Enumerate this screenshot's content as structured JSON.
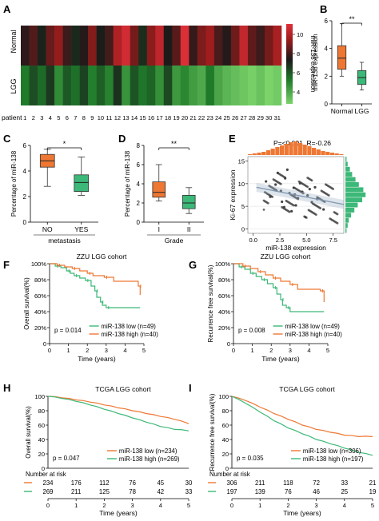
{
  "colors": {
    "normal": "#ee7733",
    "lgg": "#3cb878",
    "low": "#3cb878",
    "high": "#ee7733",
    "scatter": "#444444",
    "fit": "#9fb3c8",
    "hist_top": "#ee7733",
    "hist_right": "#3cb878"
  },
  "panelA": {
    "letter": "A",
    "row_labels": [
      "Normal",
      "LGG"
    ],
    "patient_label": "patient",
    "patients": [
      "1",
      "2",
      "3",
      "4",
      "5",
      "6",
      "7",
      "8",
      "9",
      "10",
      "11",
      "12",
      "13",
      "14",
      "15",
      "16",
      "17",
      "18",
      "19",
      "20",
      "21",
      "22",
      "23",
      "24",
      "25",
      "26",
      "27",
      "28",
      "29",
      "30",
      "31"
    ],
    "colorbar_ticks": [
      "10",
      "8",
      "6",
      "4"
    ],
    "colorbar_label": "miR-138 expression"
  },
  "panelB": {
    "letter": "B",
    "ylabel": "miR-138 expression",
    "yticks": [
      "0",
      "2",
      "4",
      "6"
    ],
    "categories": [
      "Normal",
      "LGG"
    ],
    "sig": "**"
  },
  "panelC": {
    "letter": "C",
    "ylabel": "Percentage of  miR-138",
    "yticks": [
      "0",
      "2",
      "4",
      "6"
    ],
    "categories": [
      "NO",
      "YES"
    ],
    "xlabel": "metastasis",
    "sig": "*"
  },
  "panelD": {
    "letter": "D",
    "ylabel": "Percentage of  miR-138",
    "yticks": [
      "0",
      "2",
      "4",
      "6",
      "8"
    ],
    "categories": [
      "I",
      "II"
    ],
    "xlabel": "Grade",
    "sig": "**"
  },
  "panelE": {
    "letter": "E",
    "stat": "P=<0.001, R=-0.26",
    "xlabel": "miR-138 expression",
    "ylabel": "Ki-67 expression",
    "xticks": [
      "0.0",
      "2.5",
      "5.0",
      "7.5"
    ],
    "yticks": [
      "0",
      "5",
      "10",
      "15"
    ]
  },
  "panelF": {
    "letter": "F",
    "title": "ZZU LGG cohort",
    "ylabel": "Overall survival(%)",
    "xlabel": "Time (years)",
    "yticks": [
      "0",
      "20%",
      "40%",
      "60%",
      "80%",
      "100%"
    ],
    "xticks": [
      "0",
      "1",
      "2",
      "3",
      "4",
      "5"
    ],
    "pvalue": "p = 0.014",
    "legend": [
      "miR-138 low (n=49)",
      "miR-138 high (n=40)"
    ]
  },
  "panelG": {
    "letter": "G",
    "title": "ZZU LGG cohort",
    "ylabel": "Recurrence free survival(%)",
    "xlabel": "Time (years)",
    "yticks": [
      "0",
      "20%",
      "40%",
      "60%",
      "80%",
      "100%"
    ],
    "xticks": [
      "0",
      "1",
      "2",
      "3",
      "4",
      "5"
    ],
    "pvalue": "p = 0.008",
    "legend": [
      "miR-138 low (n=49)",
      "miR-138 high (n=40)"
    ]
  },
  "panelH": {
    "letter": "H",
    "title": "TCGA LGG cohort",
    "ylabel": "Overall survival(%)",
    "xlabel": "Time (years)",
    "yticks": [
      "0",
      "20",
      "40",
      "60",
      "80",
      "100"
    ],
    "xticks": [
      "0",
      "1",
      "2",
      "3",
      "4",
      "5"
    ],
    "pvalue": "p = 0.047",
    "legend": [
      "miR-138 low (n=234)",
      "miR-138 high (n=269)"
    ],
    "risk_label": "Number at risk",
    "risk_rows": [
      [
        "234",
        "176",
        "112",
        "76",
        "45",
        "30"
      ],
      [
        "269",
        "211",
        "125",
        "78",
        "42",
        "33"
      ]
    ]
  },
  "panelI": {
    "letter": "I",
    "title": "TCGA LGG cohort",
    "ylabel": "Recurrence free survival(%)",
    "xlabel": "Time (years)",
    "yticks": [
      "0",
      "20",
      "40",
      "60",
      "80",
      "100"
    ],
    "xticks": [
      "0",
      "1",
      "2",
      "3",
      "4",
      "5"
    ],
    "pvalue": "p = 0.035",
    "legend": [
      "miR-138 low (n=306)",
      "miR-138 high (n=197)"
    ],
    "risk_label": "Number at risk",
    "risk_rows": [
      [
        "306",
        "211",
        "118",
        "72",
        "33",
        "21"
      ],
      [
        "197",
        "139",
        "76",
        "46",
        "25",
        "19"
      ]
    ]
  },
  "chart_data": [
    {
      "type": "heatmap",
      "panel": "A",
      "rows": [
        "Normal",
        "LGG"
      ],
      "columns": [
        "1",
        "2",
        "3",
        "4",
        "5",
        "6",
        "7",
        "8",
        "9",
        "10",
        "11",
        "12",
        "13",
        "14",
        "15",
        "16",
        "17",
        "18",
        "19",
        "20",
        "21",
        "22",
        "23",
        "24",
        "25",
        "26",
        "27",
        "28",
        "29",
        "30",
        "31"
      ],
      "values": [
        [
          7.6,
          8.1,
          7.2,
          8.4,
          9.0,
          7.8,
          7.1,
          7.5,
          8.8,
          7.3,
          7.9,
          9.5,
          10.2,
          8.6,
          7.0,
          8.9,
          9.8,
          7.4,
          8.2,
          10.4,
          7.7,
          8.7,
          9.2,
          8.0,
          7.5,
          8.5,
          9.9,
          8.3,
          7.8,
          8.6,
          9.4
        ],
        [
          5.6,
          6.4,
          5.9,
          6.8,
          5.2,
          6.2,
          5.8,
          6.6,
          5.5,
          6.1,
          5.4,
          6.9,
          5.0,
          6.3,
          5.7,
          6.0,
          5.1,
          6.5,
          4.9,
          5.3,
          4.8,
          4.5,
          5.6,
          4.6,
          4.2,
          4.0,
          3.8,
          3.6,
          3.9,
          3.5,
          3.7
        ]
      ],
      "colorbar_range": [
        3.5,
        10.5
      ]
    },
    {
      "type": "box",
      "panel": "B",
      "ylabel": "miR-138 expression",
      "ylim": [
        0,
        6
      ],
      "categories": [
        "Normal",
        "LGG"
      ],
      "series": [
        {
          "min": 2.0,
          "q1": 2.5,
          "median": 3.3,
          "q3": 4.2,
          "max": 5.8
        },
        {
          "min": 1.0,
          "q1": 1.4,
          "median": 1.9,
          "q3": 2.4,
          "max": 3.0
        }
      ]
    },
    {
      "type": "box",
      "panel": "C",
      "ylabel": "Percentage of  miR-138",
      "xlabel": "metastasis",
      "ylim": [
        0,
        6
      ],
      "categories": [
        "NO",
        "YES"
      ],
      "series": [
        {
          "min": 2.8,
          "q1": 4.3,
          "median": 4.8,
          "q3": 5.3,
          "max": 5.7
        },
        {
          "min": 2.1,
          "q1": 2.4,
          "median": 3.1,
          "q3": 3.7,
          "max": 5.1
        }
      ]
    },
    {
      "type": "box",
      "panel": "D",
      "ylabel": "Percentage of  miR-138",
      "xlabel": "Grade",
      "ylim": [
        0,
        8
      ],
      "categories": [
        "I",
        "II"
      ],
      "series": [
        {
          "min": 2.2,
          "q1": 2.6,
          "median": 3.1,
          "q3": 4.2,
          "max": 6.0
        },
        {
          "min": 0.9,
          "q1": 1.4,
          "median": 2.0,
          "q3": 2.8,
          "max": 3.6
        }
      ]
    },
    {
      "type": "scatter",
      "panel": "E",
      "xlabel": "miR-138 expression",
      "ylabel": "Ki-67 expression",
      "xlim": [
        -0.5,
        8.5
      ],
      "ylim": [
        -1,
        16
      ],
      "points": [
        [
          1.2,
          10.5
        ],
        [
          2.1,
          9.8
        ],
        [
          2.6,
          8.4
        ],
        [
          3.0,
          11.2
        ],
        [
          3.4,
          7.9
        ],
        [
          3.8,
          9.1
        ],
        [
          4.2,
          6.8
        ],
        [
          4.6,
          8.2
        ],
        [
          5.1,
          7.4
        ],
        [
          5.5,
          5.9
        ],
        [
          6.0,
          6.6
        ],
        [
          2.9,
          4.8
        ],
        [
          3.6,
          3.9
        ],
        [
          4.0,
          5.2
        ],
        [
          1.6,
          7.1
        ],
        [
          2.3,
          12.4
        ],
        [
          4.4,
          10.1
        ],
        [
          5.8,
          9.2
        ],
        [
          6.6,
          4.3
        ],
        [
          3.2,
          13.1
        ],
        [
          4.9,
          2.6
        ],
        [
          2.7,
          6.0
        ],
        [
          3.9,
          7.6
        ],
        [
          5.3,
          8.8
        ]
      ],
      "fit": {
        "x": [
          0.3,
          8.5
        ],
        "y": [
          9.2,
          5.4
        ]
      }
    },
    {
      "type": "line",
      "panel": "F",
      "xlabel": "Time (years)",
      "ylabel": "Overall survival(%)",
      "xlim": [
        0,
        5
      ],
      "ylim": [
        0,
        100
      ],
      "series": [
        {
          "name": "miR-138 low (n=49)",
          "x": [
            0,
            0.3,
            0.6,
            0.9,
            1.1,
            1.3,
            1.6,
            1.9,
            2.2,
            2.4,
            2.5,
            2.7,
            2.8,
            3.0,
            4.8
          ],
          "y": [
            100,
            97,
            95,
            91,
            88,
            85,
            82,
            79,
            72,
            66,
            58,
            52,
            48,
            45,
            45
          ]
        },
        {
          "name": "miR-138 high (n=40)",
          "x": [
            0,
            0.4,
            0.8,
            1.2,
            1.6,
            2.0,
            2.3,
            2.9,
            3.4,
            4.7,
            4.8
          ],
          "y": [
            100,
            98,
            96,
            94,
            91,
            88,
            85,
            83,
            78,
            72,
            61
          ]
        }
      ]
    },
    {
      "type": "line",
      "panel": "G",
      "xlabel": "Time (years)",
      "ylabel": "Recurrence free survival(%)",
      "xlim": [
        0,
        5
      ],
      "ylim": [
        0,
        100
      ],
      "series": [
        {
          "name": "miR-138 low (n=49)",
          "x": [
            0,
            0.3,
            0.6,
            0.9,
            1.2,
            1.5,
            1.8,
            2.1,
            2.3,
            2.5,
            2.6,
            2.8,
            3.0,
            4.8
          ],
          "y": [
            100,
            96,
            93,
            88,
            84,
            80,
            75,
            70,
            62,
            55,
            48,
            45,
            40,
            40
          ]
        },
        {
          "name": "miR-138 high (n=40)",
          "x": [
            0,
            0.5,
            0.9,
            1.3,
            1.7,
            2.1,
            2.5,
            3.0,
            3.4,
            4.6,
            4.8
          ],
          "y": [
            100,
            97,
            94,
            90,
            86,
            82,
            78,
            74,
            68,
            66,
            52
          ]
        }
      ]
    },
    {
      "type": "line",
      "panel": "H",
      "xlabel": "Time (years)",
      "ylabel": "Overall survival(%)",
      "xlim": [
        0,
        5
      ],
      "ylim": [
        0,
        100
      ],
      "series": [
        {
          "name": "miR-138 low (n=234)",
          "x": [
            0,
            0.5,
            1,
            1.5,
            2,
            2.5,
            3,
            3.5,
            4,
            4.5,
            5
          ],
          "y": [
            100,
            98,
            95,
            92,
            88,
            84,
            80,
            76,
            72,
            68,
            62
          ]
        },
        {
          "name": "miR-138 high (n=269)",
          "x": [
            0,
            0.5,
            1,
            1.5,
            2,
            2.5,
            3,
            3.5,
            4,
            4.5,
            5
          ],
          "y": [
            100,
            97,
            93,
            88,
            82,
            76,
            70,
            64,
            58,
            54,
            52
          ]
        }
      ]
    },
    {
      "type": "line",
      "panel": "I",
      "xlabel": "Time (years)",
      "ylabel": "Recurrence free survival(%)",
      "xlim": [
        0,
        5
      ],
      "ylim": [
        0,
        100
      ],
      "series": [
        {
          "name": "miR-138 low (n=306)",
          "x": [
            0,
            0.5,
            1,
            1.5,
            2,
            2.5,
            3,
            3.5,
            4,
            4.5,
            5
          ],
          "y": [
            100,
            94,
            85,
            76,
            68,
            60,
            54,
            50,
            46,
            44,
            44
          ]
        },
        {
          "name": "miR-138 high (n=197)",
          "x": [
            0,
            0.5,
            1,
            1.5,
            2,
            2.5,
            3,
            3.5,
            4,
            4.5,
            5
          ],
          "y": [
            100,
            90,
            78,
            66,
            56,
            48,
            40,
            34,
            28,
            22,
            18
          ]
        }
      ]
    }
  ]
}
